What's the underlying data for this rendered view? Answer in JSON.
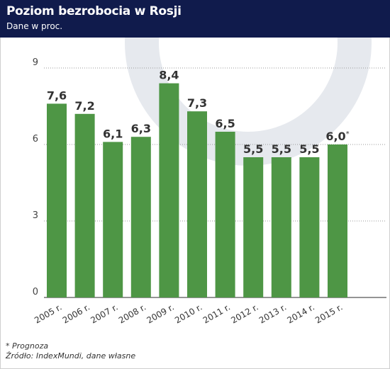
{
  "header": {
    "title": "Poziom bezrobocia w Rosji",
    "subtitle": "Dane w proc."
  },
  "colors": {
    "header_bg": "#101b4c",
    "bar": "#4e9645",
    "deco": "#e6e9ee"
  },
  "chart_data": {
    "type": "bar",
    "categories": [
      "2005 r.",
      "2006 r.",
      "2007 r.",
      "2008 r.",
      "2009 r.",
      "2010 r.",
      "2011 r.",
      "2012 r.",
      "2013 r.",
      "2014 r.",
      "2015 r."
    ],
    "values": [
      7.6,
      7.2,
      6.1,
      6.3,
      8.4,
      7.3,
      6.5,
      5.5,
      5.5,
      5.5,
      6.0
    ],
    "data_labels": [
      "7,6",
      "7,2",
      "6,1",
      "6,3",
      "8,4",
      "7,3",
      "6,5",
      "5,5",
      "5,5",
      "5,5",
      "6,0"
    ],
    "label_suffixes": [
      "",
      "",
      "",
      "",
      "",
      "",
      "",
      "",
      "",
      "",
      "*"
    ],
    "title": "Poziom bezrobocia w Rosji",
    "subtitle": "Dane w proc.",
    "yticks": [
      0,
      3,
      6,
      9
    ],
    "ytick_labels": [
      "0",
      "3",
      "6",
      "9"
    ],
    "ylim": [
      0,
      9
    ],
    "grid": true,
    "grid_style": "dotted"
  },
  "footnote": {
    "note": "* Prognoza",
    "source": "Źródło: IndexMundi, dane własne"
  }
}
